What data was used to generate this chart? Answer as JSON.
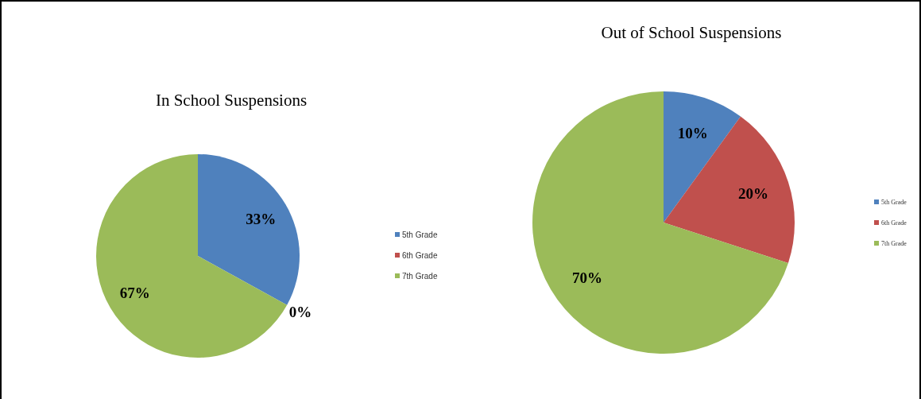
{
  "chart_data": [
    {
      "type": "pie",
      "title": "In School Suspensions",
      "categories": [
        "5th Grade",
        "6th Grade",
        "7th Grade"
      ],
      "values": [
        33,
        0,
        67
      ],
      "value_labels": [
        "33%",
        "0%",
        "67%"
      ],
      "colors": [
        "#4f81bd",
        "#c0504d",
        "#9bbb59"
      ],
      "legend": "right"
    },
    {
      "type": "pie",
      "title": "Out of School Suspensions",
      "categories": [
        "5th Grade",
        "6th Grade",
        "7th Grade"
      ],
      "values": [
        10,
        20,
        70
      ],
      "value_labels": [
        "10%",
        "20%",
        "70%"
      ],
      "colors": [
        "#4f81bd",
        "#c0504d",
        "#9bbb59"
      ],
      "legend": "right"
    }
  ]
}
